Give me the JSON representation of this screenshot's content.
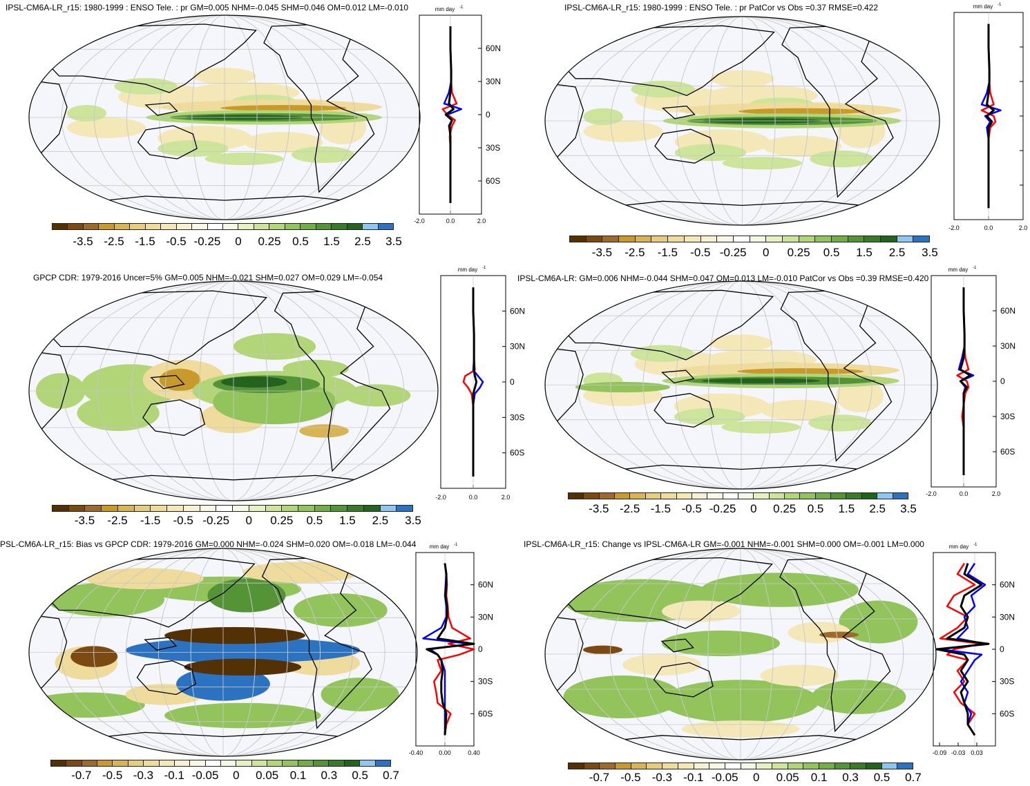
{
  "panels": [
    {
      "id": "p1",
      "title": "IPSL-CM6A-LR_r15: 1980-1999 : ENSO Tele. : pr GM=0.005 NHM=-0.045 SHM=0.046 OM=0.012 LM=-0.010",
      "units": "mm day",
      "units_exp": "-1",
      "lat_labels": [
        "60N",
        "30N",
        "0",
        "30S",
        "60S"
      ],
      "x_tick_labels": [
        "-2.0",
        "0.0",
        "2.0"
      ],
      "colorbar_labels": [
        "-3.5",
        "-2.5",
        "-1.5",
        "-0.5",
        "-0.25",
        "0",
        "0.25",
        "0.5",
        "1.5",
        "2.5",
        "3.5"
      ]
    },
    {
      "id": "p2",
      "title": "IPSL-CM6A-LR_r15: 1980-1999 : ENSO Tele. : pr PatCor vs Obs =0.37 RMSE=0.422",
      "units": "mm day",
      "units_exp": "-1",
      "lat_labels": [],
      "x_tick_labels": [
        "-2.0",
        "0.0",
        "2.0"
      ],
      "colorbar_labels": [
        "-3.5",
        "-2.5",
        "-1.5",
        "-0.5",
        "-0.25",
        "0",
        "0.25",
        "0.5",
        "1.5",
        "2.5",
        "3.5"
      ]
    },
    {
      "id": "p3",
      "title": "GPCP CDR: 1979-2016 Uncer=5% GM=0.005 NHM=-0.021 SHM=0.027 OM=0.029 LM=-0.054",
      "units": "mm day",
      "units_exp": "-1",
      "lat_labels": [
        "60N",
        "30N",
        "0",
        "30S",
        "60S"
      ],
      "x_tick_labels": [
        "-2.0",
        "0.0",
        "2.0"
      ],
      "colorbar_labels": [
        "-3.5",
        "-2.5",
        "-1.5",
        "-0.5",
        "-0.25",
        "0",
        "0.25",
        "0.5",
        "1.5",
        "2.5",
        "3.5"
      ]
    },
    {
      "id": "p4",
      "title": "IPSL-CM6A-LR: GM=0.006 NHM=-0.044 SHM=0.047 OM=0.013 LM=-0.010 PatCor vs Obs =0.39 RMSE=0.420",
      "units": "mm day",
      "units_exp": "-1",
      "lat_labels": [
        "60N",
        "30N",
        "0",
        "30S",
        "60S"
      ],
      "x_tick_labels": [
        "-2.0",
        "0.0",
        "2.0"
      ],
      "colorbar_labels": [
        "-3.5",
        "-2.5",
        "-1.5",
        "-0.5",
        "-0.25",
        "0",
        "0.25",
        "0.5",
        "1.5",
        "2.5",
        "3.5"
      ]
    },
    {
      "id": "p5",
      "title": "PSL-CM6A-LR_r15: Bias vs GPCP CDR: 1979-2016 GM=0.000 NHM=-0.024 SHM=0.020 OM=-0.018 LM=-0.044",
      "units": "mm day",
      "units_exp": "-1",
      "lat_labels": [
        "60N",
        "30N",
        "0",
        "30S",
        "60S"
      ],
      "x_tick_labels": [
        "-0.40",
        "0.00",
        "0.40"
      ],
      "colorbar_labels": [
        "-0.7",
        "-0.5",
        "-0.3",
        "-0.1",
        "-0.05",
        "0",
        "0.05",
        "0.1",
        "0.3",
        "0.5",
        "0.7"
      ]
    },
    {
      "id": "p6",
      "title": "IPSL-CM6A-LR_r15: Change vs IPSL-CM6A-LR GM=-0.001 NHM=-0.001 SHM=0.000 OM=-0.001 LM=0.000",
      "units": "mm day",
      "units_exp": "-1",
      "lat_labels": [
        "60N",
        "30N",
        "0",
        "30S",
        "60S"
      ],
      "x_tick_labels": [
        "-0.09",
        "-0.03",
        "0.03"
      ],
      "colorbar_labels": [
        "-0.7",
        "-0.5",
        "-0.3",
        "-0.1",
        "-0.05",
        "0",
        "0.05",
        "0.1",
        "0.3",
        "0.5",
        "0.7"
      ]
    }
  ],
  "colors": {
    "colorbar": [
      "#543005",
      "#7b4a12",
      "#9c6b2c",
      "#c89a2c",
      "#d7b454",
      "#e6cc7e",
      "#efdb9c",
      "#f4e8b8",
      "#f8f0d2",
      "#fbf7e6",
      "#ffffff",
      "#f3f9e4",
      "#e4f1c2",
      "#cce59a",
      "#b1d577",
      "#93c45c",
      "#74ad45",
      "#559436",
      "#3a7a2b",
      "#246220",
      "#8ec6ee",
      "#2b72c1"
    ],
    "ocean": "#f5f6fb",
    "series_model": "#ff0000",
    "series_obs": "#0000ff",
    "series_mean": "#000000"
  },
  "chart_data": [
    {
      "type": "heatmap",
      "panel": "p1",
      "title": "IPSL-CM6A-LR_r15: 1980-1999 : ENSO Tele. : pr GM=0.005 NHM=-0.045 SHM=0.046 OM=0.012 LM=-0.010",
      "colorbar_levels": [
        -3.5,
        -2.5,
        -1.5,
        -0.5,
        -0.25,
        0,
        0.25,
        0.5,
        1.5,
        2.5,
        3.5
      ],
      "zonal_profile": {
        "lat": [
          80,
          60,
          40,
          30,
          20,
          10,
          5,
          0,
          -5,
          -10,
          -20,
          -30,
          -40,
          -60,
          -80
        ],
        "series": [
          {
            "color": "#ff0000",
            "values": [
              0.0,
              0.0,
              0.05,
              0.05,
              0.1,
              0.4,
              -0.5,
              -0.2,
              0.3,
              0.1,
              -0.05,
              0.0,
              0.0,
              0.0,
              0.0
            ]
          },
          {
            "color": "#0000ff",
            "values": [
              0.0,
              0.0,
              0.05,
              0.05,
              -0.1,
              -0.4,
              0.7,
              -0.2,
              0.1,
              -0.1,
              0.0,
              0.0,
              0.0,
              0.0,
              0.0
            ]
          },
          {
            "color": "#000000",
            "values": [
              0.0,
              0.0,
              0.05,
              0.05,
              0.0,
              -0.1,
              0.2,
              -0.3,
              0.1,
              -0.05,
              0.0,
              0.0,
              0.0,
              0.0,
              0.0
            ]
          }
        ],
        "xlim": [
          -2.0,
          2.0
        ],
        "ylim": [
          -90,
          90
        ]
      }
    },
    {
      "type": "heatmap",
      "panel": "p2",
      "title": "IPSL-CM6A-LR_r15: 1980-1999 : ENSO Tele. : pr PatCor vs Obs =0.37 RMSE=0.422",
      "colorbar_levels": [
        -3.5,
        -2.5,
        -1.5,
        -0.5,
        -0.25,
        0,
        0.25,
        0.5,
        1.5,
        2.5,
        3.5
      ],
      "zonal_profile": {
        "lat": [
          80,
          60,
          40,
          30,
          20,
          10,
          5,
          0,
          -5,
          -10,
          -20,
          -30,
          -40,
          -60,
          -80
        ],
        "series": [
          {
            "color": "#ff0000",
            "values": [
              0.0,
              0.0,
              0.05,
              0.05,
              0.1,
              0.3,
              -0.4,
              0.3,
              0.4,
              0.1,
              0.0,
              0.0,
              0.0,
              0.0,
              0.0
            ]
          },
          {
            "color": "#0000ff",
            "values": [
              0.0,
              0.0,
              0.05,
              0.05,
              -0.1,
              -0.4,
              0.7,
              -0.2,
              0.1,
              -0.1,
              0.0,
              0.0,
              0.0,
              0.0,
              0.0
            ]
          },
          {
            "color": "#000000",
            "values": [
              0.0,
              0.0,
              0.05,
              0.05,
              0.0,
              -0.1,
              0.3,
              -0.1,
              0.2,
              0.0,
              0.0,
              0.0,
              0.0,
              0.0,
              0.0
            ]
          }
        ],
        "xlim": [
          -2.0,
          2.0
        ],
        "ylim": [
          -90,
          90
        ]
      }
    },
    {
      "type": "heatmap",
      "panel": "p3",
      "title": "GPCP CDR: 1979-2016 Uncer=5% GM=0.005 NHM=-0.021 SHM=0.027 OM=0.029 LM=-0.054",
      "colorbar_levels": [
        -3.5,
        -2.5,
        -1.5,
        -0.5,
        -0.25,
        0,
        0.25,
        0.5,
        1.5,
        2.5,
        3.5
      ],
      "zonal_profile": {
        "lat": [
          80,
          60,
          40,
          30,
          20,
          10,
          5,
          0,
          -5,
          -10,
          -20,
          -30,
          -40,
          -60,
          -80
        ],
        "series": [
          {
            "color": "#ff0000",
            "values": [
              0.0,
              0.0,
              0.05,
              0.05,
              0.05,
              0.1,
              -0.5,
              -0.6,
              -0.3,
              -0.1,
              0.0,
              0.0,
              0.0,
              0.0,
              0.0
            ]
          },
          {
            "color": "#0000ff",
            "values": [
              0.0,
              0.0,
              0.05,
              0.05,
              0.05,
              0.0,
              0.3,
              0.6,
              0.4,
              0.1,
              0.0,
              0.0,
              0.0,
              0.0,
              0.0
            ]
          },
          {
            "color": "#000000",
            "values": [
              0.0,
              0.0,
              0.05,
              0.05,
              0.05,
              0.05,
              0.1,
              0.2,
              0.1,
              0.0,
              0.0,
              0.0,
              0.0,
              0.0,
              0.0
            ]
          }
        ],
        "xlim": [
          -2.0,
          2.0
        ],
        "ylim": [
          -90,
          90
        ]
      }
    },
    {
      "type": "heatmap",
      "panel": "p4",
      "title": "IPSL-CM6A-LR: GM=0.006 NHM=-0.044 SHM=0.047 OM=0.013 LM=-0.010 PatCor vs Obs =0.39 RMSE=0.420",
      "colorbar_levels": [
        -3.5,
        -2.5,
        -1.5,
        -0.5,
        -0.25,
        0,
        0.25,
        0.5,
        1.5,
        2.5,
        3.5
      ],
      "zonal_profile": {
        "lat": [
          80,
          60,
          40,
          30,
          20,
          10,
          5,
          0,
          -5,
          -10,
          -20,
          -30,
          -40,
          -60,
          -80
        ],
        "series": [
          {
            "color": "#ff0000",
            "values": [
              0.0,
              0.0,
              0.05,
              0.05,
              0.1,
              0.3,
              -0.4,
              0.2,
              0.3,
              0.1,
              0.0,
              -0.1,
              0.0,
              0.0,
              0.0
            ]
          },
          {
            "color": "#0000ff",
            "values": [
              0.0,
              0.0,
              0.05,
              0.05,
              -0.1,
              -0.3,
              0.6,
              -0.2,
              0.1,
              0.0,
              0.0,
              0.0,
              0.0,
              0.0,
              0.0
            ]
          },
          {
            "color": "#000000",
            "values": [
              0.0,
              0.0,
              0.05,
              0.05,
              0.0,
              -0.2,
              0.4,
              -0.2,
              0.2,
              0.0,
              0.0,
              0.0,
              0.0,
              0.0,
              0.0
            ]
          }
        ],
        "xlim": [
          -2.0,
          2.0
        ],
        "ylim": [
          -90,
          90
        ]
      }
    },
    {
      "type": "heatmap",
      "panel": "p5",
      "title": "PSL-CM6A-LR_r15: Bias vs GPCP CDR: 1979-2016 GM=0.000 NHM=-0.024 SHM=0.020 OM=-0.018 LM=-0.044",
      "colorbar_levels": [
        -0.7,
        -0.5,
        -0.3,
        -0.1,
        -0.05,
        0,
        0.05,
        0.1,
        0.3,
        0.5,
        0.7
      ],
      "zonal_profile": {
        "lat": [
          80,
          70,
          60,
          50,
          40,
          30,
          20,
          10,
          5,
          0,
          -5,
          -10,
          -20,
          -30,
          -40,
          -50,
          -60,
          -70,
          -80
        ],
        "series": [
          {
            "color": "#ff0000",
            "values": [
              0.0,
              0.02,
              0.03,
              0.02,
              0.04,
              0.05,
              0.1,
              0.35,
              0.05,
              0.4,
              0.2,
              -0.1,
              -0.05,
              -0.15,
              -0.12,
              -0.1,
              0.08,
              0.02,
              0.0
            ]
          },
          {
            "color": "#0000ff",
            "values": [
              0.0,
              0.02,
              0.01,
              0.0,
              0.02,
              0.02,
              -0.05,
              -0.3,
              0.35,
              -0.2,
              -0.1,
              -0.05,
              0.0,
              0.0,
              0.0,
              0.0,
              0.0,
              0.0,
              0.0
            ]
          },
          {
            "color": "#000000",
            "values": [
              0.0,
              0.02,
              0.02,
              0.01,
              0.03,
              0.03,
              0.0,
              -0.1,
              0.4,
              -0.25,
              -0.1,
              -0.05,
              -0.03,
              -0.05,
              -0.05,
              -0.03,
              0.02,
              0.01,
              0.0
            ]
          }
        ],
        "xlim": [
          -0.4,
          0.4
        ],
        "ylim": [
          -90,
          90
        ]
      }
    },
    {
      "type": "heatmap",
      "panel": "p6",
      "title": "IPSL-CM6A-LR_r15: Change vs IPSL-CM6A-LR GM=-0.001 NHM=-0.001 SHM=0.000 OM=-0.001 LM=0.000",
      "colorbar_levels": [
        -0.7,
        -0.5,
        -0.3,
        -0.1,
        -0.05,
        0,
        0.05,
        0.1,
        0.3,
        0.5,
        0.7
      ],
      "zonal_profile": {
        "lat": [
          80,
          70,
          60,
          50,
          40,
          30,
          20,
          10,
          5,
          0,
          -5,
          -10,
          -20,
          -30,
          -40,
          -50,
          -60,
          -70,
          -80
        ],
        "series": [
          {
            "color": "#ff0000",
            "values": [
              -0.03,
              -0.05,
              0.0,
              -0.06,
              -0.08,
              -0.02,
              -0.05,
              -0.1,
              0.02,
              -0.06,
              -0.08,
              -0.02,
              -0.05,
              -0.03,
              -0.06,
              -0.04,
              0.0,
              -0.02,
              0.0
            ]
          },
          {
            "color": "#0000ff",
            "values": [
              0.0,
              -0.02,
              0.03,
              -0.01,
              0.0,
              -0.03,
              -0.02,
              -0.05,
              0.03,
              -0.1,
              0.02,
              0.0,
              -0.02,
              -0.04,
              -0.02,
              -0.03,
              -0.01,
              -0.02,
              0.0
            ]
          },
          {
            "color": "#000000",
            "values": [
              -0.02,
              -0.03,
              0.02,
              -0.03,
              -0.04,
              -0.02,
              -0.03,
              -0.08,
              0.04,
              -0.11,
              -0.03,
              -0.02,
              -0.04,
              -0.02,
              -0.04,
              -0.03,
              -0.02,
              -0.02,
              0.0
            ]
          }
        ],
        "xlim": [
          -0.12,
          0.06
        ],
        "ylim": [
          -90,
          90
        ]
      }
    }
  ]
}
